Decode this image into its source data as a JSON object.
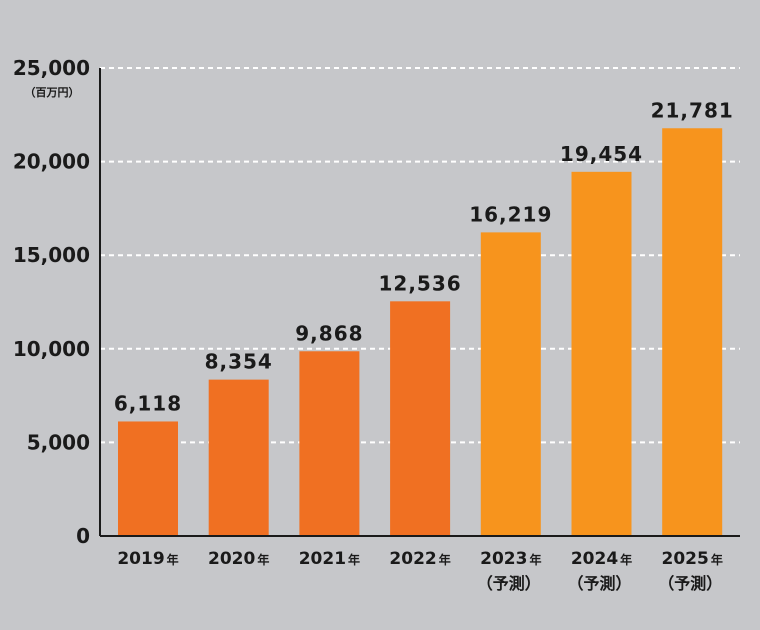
{
  "chart_data": {
    "type": "bar",
    "title": "",
    "xlabel": "",
    "ylabel": "",
    "unit_label": "（百万円）",
    "ylim": [
      0,
      25000
    ],
    "yticks": [
      0,
      5000,
      10000,
      15000,
      20000,
      25000
    ],
    "ytick_labels": [
      "0",
      "5,000",
      "10,000",
      "15,000",
      "20,000",
      "25,000"
    ],
    "grid": true,
    "categories": [
      "2019",
      "2020",
      "2021",
      "2022",
      "2023",
      "2024",
      "2025"
    ],
    "category_suffix": "年",
    "category_notes": [
      "",
      "",
      "",
      "",
      "（予測）",
      "（予測）",
      "（予測）"
    ],
    "values": [
      6118,
      8354,
      9868,
      12536,
      16219,
      19454,
      21781
    ],
    "value_labels": [
      "6,118",
      "8,354",
      "9,868",
      "12,536",
      "16,219",
      "19,454",
      "21,781"
    ],
    "colors": {
      "actual": "#f07022",
      "forecast": "#f7941d",
      "grid": "#ffffff",
      "axis": "#1a1a1a",
      "background": "#c6c7ca"
    },
    "forecast_flags": [
      false,
      false,
      false,
      false,
      true,
      true,
      true
    ]
  }
}
